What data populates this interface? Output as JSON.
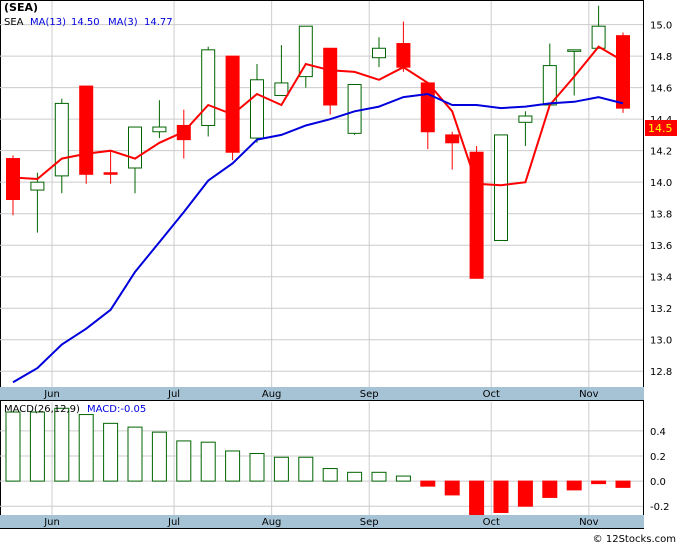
{
  "title": "(SEA)",
  "watermark": "© 12Stocks.com",
  "colors": {
    "up": "#006400",
    "down": "#ff0000",
    "ma_short": "#ff0000",
    "ma_long": "#0000dd",
    "axis_strip": "#a6c3d6",
    "price_tag_bg": "#ff0000",
    "price_tag_text": "#ffff00",
    "grid": "#cccccc"
  },
  "chart_data": [
    {
      "type": "candlestick",
      "title": "(SEA)",
      "legend": [
        {
          "label": "SEA",
          "value": "",
          "color": "#000000"
        },
        {
          "label": "MA(13)",
          "value": "14.50",
          "color": "#0000dd"
        },
        {
          "label": "MA(3)",
          "value": "14.77",
          "color": "#0000dd"
        }
      ],
      "price_tag": "14.5",
      "ylim": [
        12.7,
        15.15
      ],
      "yticks": [
        "12.8",
        "13.0",
        "13.2",
        "13.4",
        "13.6",
        "13.8",
        "14.0",
        "14.2",
        "14.4",
        "14.6",
        "14.8",
        "15.0"
      ],
      "xticks": [
        {
          "label": "Jun",
          "index": 1
        },
        {
          "label": "Jul",
          "index": 6
        },
        {
          "label": "Aug",
          "index": 10
        },
        {
          "label": "Sep",
          "index": 14
        },
        {
          "label": "Oct",
          "index": 19
        },
        {
          "label": "Nov",
          "index": 23
        }
      ],
      "candles": [
        {
          "o": 14.15,
          "h": 14.17,
          "l": 13.79,
          "c": 13.89
        },
        {
          "o": 13.95,
          "h": 14.06,
          "l": 13.68,
          "c": 14.0
        },
        {
          "o": 14.04,
          "h": 14.53,
          "l": 13.93,
          "c": 14.5
        },
        {
          "o": 14.61,
          "h": 14.61,
          "l": 13.99,
          "c": 14.05
        },
        {
          "o": 14.06,
          "h": 14.2,
          "l": 13.99,
          "c": 14.05
        },
        {
          "o": 14.09,
          "h": 14.35,
          "l": 13.93,
          "c": 14.35
        },
        {
          "o": 14.32,
          "h": 14.52,
          "l": 14.28,
          "c": 14.35
        },
        {
          "o": 14.36,
          "h": 14.46,
          "l": 14.15,
          "c": 14.27
        },
        {
          "o": 14.36,
          "h": 14.86,
          "l": 14.29,
          "c": 14.84
        },
        {
          "o": 14.8,
          "h": 14.8,
          "l": 14.14,
          "c": 14.19
        },
        {
          "o": 14.28,
          "h": 14.75,
          "l": 14.25,
          "c": 14.65
        },
        {
          "o": 14.55,
          "h": 14.87,
          "l": 14.56,
          "c": 14.63
        },
        {
          "o": 14.67,
          "h": 14.99,
          "l": 14.6,
          "c": 14.99
        },
        {
          "o": 14.85,
          "h": 14.85,
          "l": 14.43,
          "c": 14.49
        },
        {
          "o": 14.31,
          "h": 14.62,
          "l": 14.3,
          "c": 14.62
        },
        {
          "o": 14.79,
          "h": 14.92,
          "l": 14.73,
          "c": 14.85
        },
        {
          "o": 14.88,
          "h": 15.02,
          "l": 14.7,
          "c": 14.73
        },
        {
          "o": 14.63,
          "h": 14.63,
          "l": 14.21,
          "c": 14.32
        },
        {
          "o": 14.3,
          "h": 14.32,
          "l": 14.08,
          "c": 14.25
        },
        {
          "o": 14.19,
          "h": 14.23,
          "l": 13.39,
          "c": 13.39
        },
        {
          "o": 13.63,
          "h": 14.3,
          "l": 13.63,
          "c": 14.3
        },
        {
          "o": 14.38,
          "h": 14.45,
          "l": 14.23,
          "c": 14.42
        },
        {
          "o": 14.49,
          "h": 14.88,
          "l": 14.49,
          "c": 14.74
        },
        {
          "o": 14.84,
          "h": 14.84,
          "l": 14.55,
          "c": 14.84
        },
        {
          "o": 14.85,
          "h": 15.12,
          "l": 14.85,
          "c": 14.99
        },
        {
          "o": 14.93,
          "h": 14.95,
          "l": 14.44,
          "c": 14.47
        }
      ],
      "series": [
        {
          "name": "MA(3)",
          "color": "#ff0000",
          "values": [
            14.03,
            14.02,
            14.15,
            14.18,
            14.2,
            14.15,
            14.25,
            14.32,
            14.49,
            14.43,
            14.56,
            14.49,
            14.75,
            14.71,
            14.7,
            14.65,
            14.73,
            14.63,
            14.45,
            13.99,
            13.98,
            14.0,
            14.49,
            14.67,
            14.86,
            14.77
          ]
        },
        {
          "name": "MA(13)",
          "color": "#0000dd",
          "values": [
            12.73,
            12.82,
            12.97,
            13.07,
            13.19,
            13.43,
            13.62,
            13.81,
            14.01,
            14.12,
            14.27,
            14.3,
            14.36,
            14.4,
            14.45,
            14.48,
            14.54,
            14.56,
            14.49,
            14.49,
            14.47,
            14.48,
            14.5,
            14.51,
            14.54,
            14.5
          ]
        }
      ]
    },
    {
      "type": "bar",
      "title": "MACD(26,12,9)",
      "legend_value": "MACD:-0.05",
      "ylim": [
        -0.27,
        0.63
      ],
      "yticks": [
        "0.4",
        "0.2",
        "0.0",
        "-0.2"
      ],
      "values": [
        0.55,
        0.55,
        0.58,
        0.53,
        0.46,
        0.43,
        0.39,
        0.32,
        0.31,
        0.24,
        0.22,
        0.19,
        0.19,
        0.1,
        0.07,
        0.07,
        0.04,
        -0.04,
        -0.11,
        -0.27,
        -0.25,
        -0.2,
        -0.13,
        -0.07,
        -0.02,
        -0.05
      ]
    }
  ]
}
